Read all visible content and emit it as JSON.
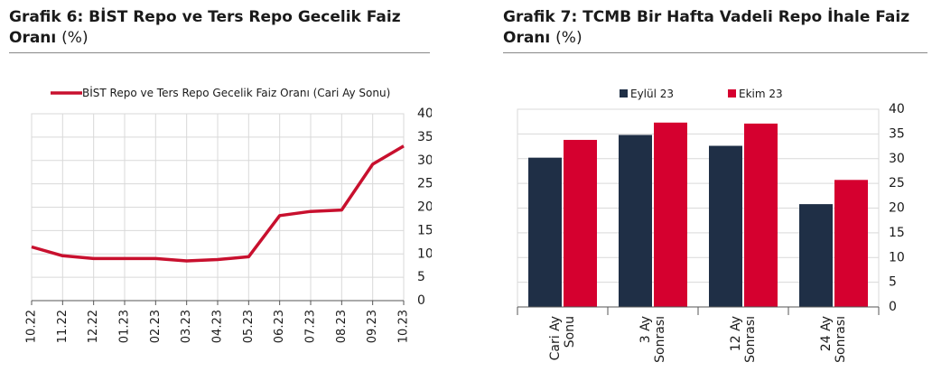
{
  "charts": [
    {
      "title": "Grafik 6:  BİST Repo ve Ters Repo Gecelik Faiz Oranı",
      "unit": "(%)",
      "legend": "BİST Repo ve Ters Repo Gecelik Faiz Oranı (Cari Ay Sonu)"
    },
    {
      "title": "Grafik 7: TCMB Bir Hafta Vadeli Repo İhale Faiz Oranı",
      "unit": "(%)"
    }
  ],
  "chart_data": [
    {
      "type": "line",
      "x": [
        "10.22",
        "11.22",
        "12.22",
        "01.23",
        "02.23",
        "03.23",
        "04.23",
        "05.23",
        "06.23",
        "07.23",
        "08.23",
        "09.23",
        "10.23"
      ],
      "series": [
        {
          "name": "BİST Repo ve Ters Repo Gecelik Faiz Oranı (Cari Ay Sonu)",
          "values": [
            11.5,
            9.6,
            9.0,
            9.0,
            9.0,
            8.5,
            8.8,
            9.4,
            18.2,
            19.1,
            19.4,
            29.2,
            33.1
          ]
        }
      ],
      "ylim": [
        0,
        40
      ],
      "yticks": [
        0,
        5,
        10,
        15,
        20,
        25,
        30,
        35,
        40
      ],
      "y_axis_side": "right",
      "grid": true,
      "legend_position": "top",
      "colors": {
        "line": "#c8102e",
        "grid": "#d9d9d9",
        "axis": "#555555"
      }
    },
    {
      "type": "bar",
      "categories": [
        [
          "Cari Ay",
          "Sonu"
        ],
        [
          "3 Ay",
          "Sonrası"
        ],
        [
          "12 Ay",
          "Sonrası"
        ],
        [
          "24 Ay",
          "Sonrası"
        ]
      ],
      "series": [
        {
          "name": "Eylül 23",
          "values": [
            30.2,
            34.8,
            32.6,
            20.8
          ]
        },
        {
          "name": "Ekim 23",
          "values": [
            33.8,
            37.3,
            37.1,
            25.7
          ]
        }
      ],
      "ylim": [
        0,
        40
      ],
      "yticks": [
        0,
        5,
        10,
        15,
        20,
        25,
        30,
        35,
        40
      ],
      "y_axis_side": "right",
      "grid": true,
      "legend_position": "top",
      "colors": {
        "Eylül 23": "#1f2f46",
        "Ekim 23": "#d5002f",
        "grid": "#d9d9d9",
        "axis": "#555555"
      }
    }
  ]
}
